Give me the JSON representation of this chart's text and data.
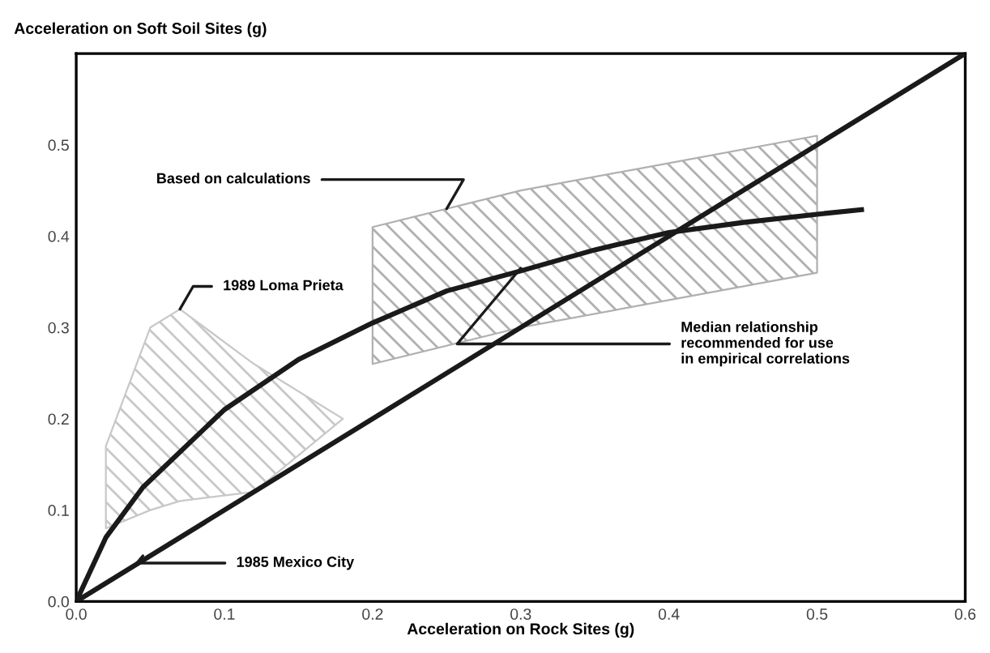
{
  "chart_data": {
    "type": "line",
    "xlabel": "Acceleration on Rock Sites (g)",
    "ylabel": "Acceleration on Soft Soil Sites (g)",
    "xlim": [
      0,
      0.6
    ],
    "ylim": [
      0,
      0.6
    ],
    "xticks": [
      {
        "value": 0,
        "label": "0.0"
      },
      {
        "value": 0.1,
        "label": "0.1"
      },
      {
        "value": 0.2,
        "label": "0.2"
      },
      {
        "value": 0.3,
        "label": "0.3"
      },
      {
        "value": 0.4,
        "label": "0.4"
      },
      {
        "value": 0.5,
        "label": "0.5"
      },
      {
        "value": 0.6,
        "label": "0.6"
      }
    ],
    "yticks": [
      {
        "value": 0,
        "label": "0.0"
      },
      {
        "value": 0.1,
        "label": "0.1"
      },
      {
        "value": 0.2,
        "label": "0.2"
      },
      {
        "value": 0.3,
        "label": "0.3"
      },
      {
        "value": 0.4,
        "label": "0.4"
      },
      {
        "value": 0.5,
        "label": "0.5"
      }
    ],
    "series": [
      {
        "color": "#b0b0b0",
        "x": [
          0.2,
          0.3,
          0.4,
          0.5
        ],
        "values": [
          null,
          null,
          null,
          null
        ],
        "upper": [
          0.41,
          0.45,
          0.48,
          0.51
        ],
        "lower": [
          0.26,
          0.3,
          0.33,
          0.36
        ]
      },
      {
        "color": "#c8c8c8",
        "x": [
          0.02,
          0.05,
          0.07,
          0.12,
          0.18
        ],
        "values": [
          null,
          null,
          null,
          null,
          null
        ],
        "upper": [
          0.17,
          0.3,
          0.32,
          0.26,
          0.2
        ],
        "lower": [
          0.08,
          0.1,
          0.11,
          0.12,
          0.2
        ]
      },
      {
        "color": "#1a1a1a",
        "x": [
          0,
          0.6
        ],
        "values": [
          0,
          0.6
        ]
      },
      {
        "color": "#1a1a1a",
        "x": [
          0,
          0.02,
          0.045,
          0.1,
          0.15,
          0.2,
          0.25,
          0.3,
          0.35,
          0.4,
          0.45,
          0.5,
          0.53
        ],
        "values": [
          0,
          0.07,
          0.125,
          0.21,
          0.265,
          0.305,
          0.34,
          0.362,
          0.385,
          0.404,
          0.415,
          0.424,
          0.429
        ]
      }
    ],
    "annotations": [
      {
        "text": "Based on calculations",
        "x": 0.25,
        "y": 0.43
      },
      {
        "text": "1989 Loma Prieta",
        "x": 0.07,
        "y": 0.32
      },
      {
        "text": "Median relationship\nrecommended for use\nin empirical correlations",
        "x": 0.3,
        "y": 0.365
      },
      {
        "text": "1985 Mexico City",
        "x": 0.045,
        "y": 0.05
      }
    ],
    "grid": false,
    "legend": false,
    "marker": "none",
    "line_style": "solid"
  }
}
